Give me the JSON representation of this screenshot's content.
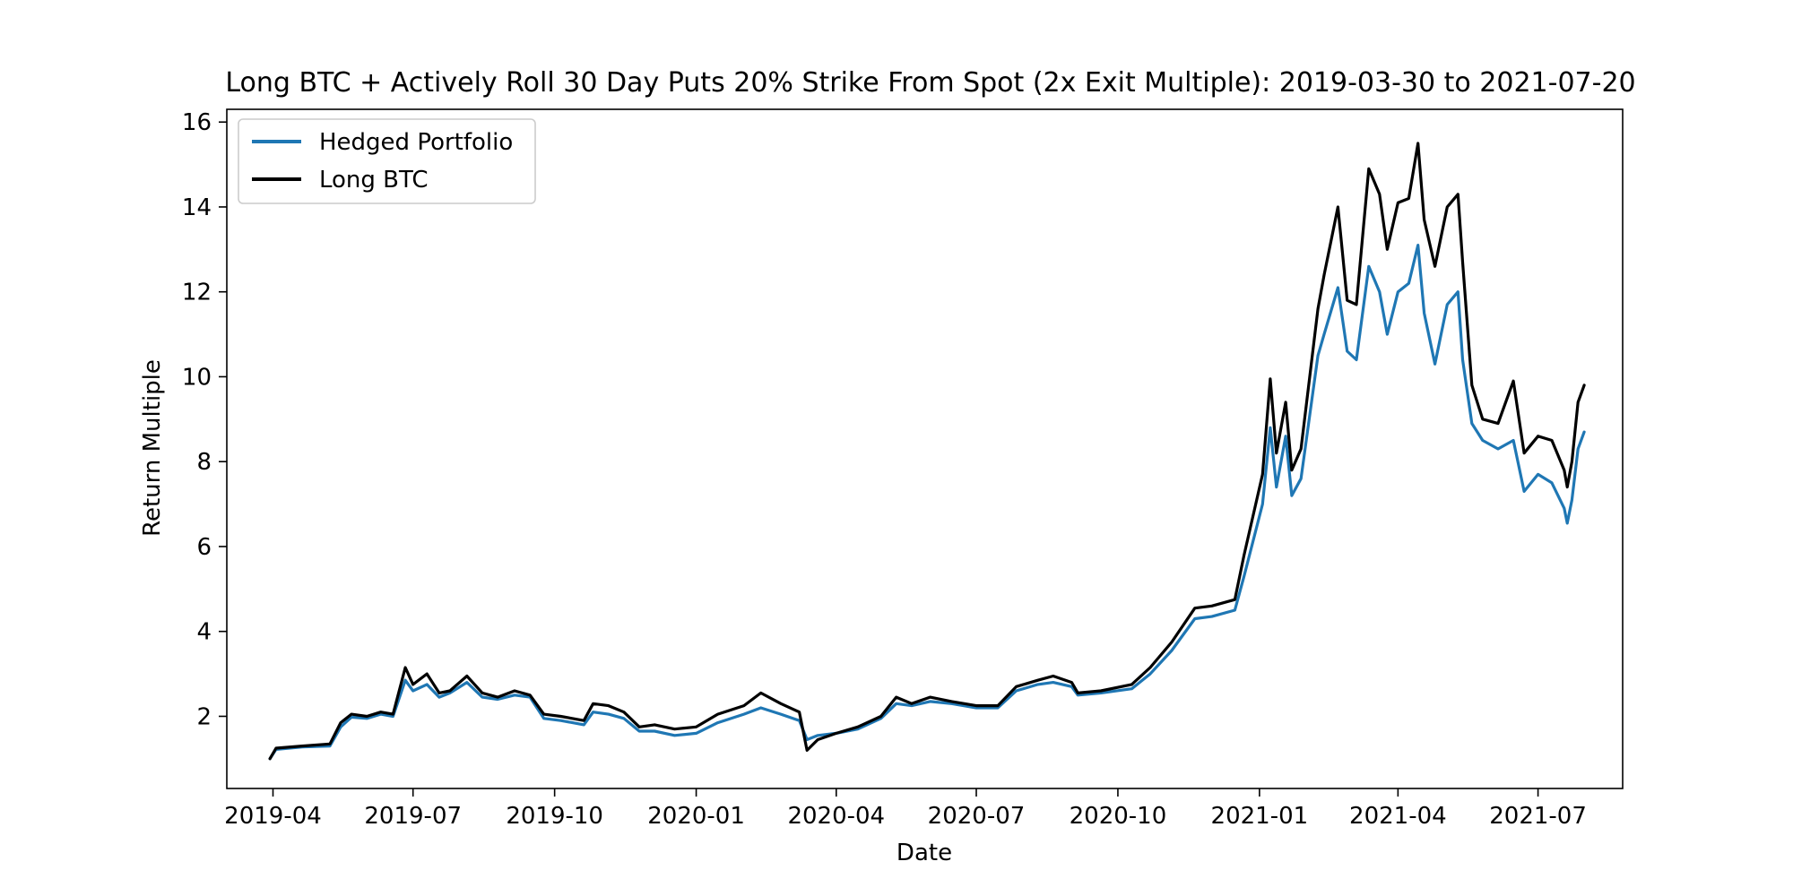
{
  "chart_data": {
    "type": "line",
    "title": "Long BTC + Actively Roll 30 Day Puts 20% Strike From Spot (2x Exit Multiple): 2019-03-30 to 2021-07-20",
    "xlabel": "Date",
    "ylabel": "Return Multiple",
    "ylim": [
      0.3,
      16.3
    ],
    "xlim": [
      "2019-03-02",
      "2021-08-25"
    ],
    "yticks": [
      2,
      4,
      6,
      8,
      10,
      12,
      14,
      16
    ],
    "yticklabels": [
      "2",
      "4",
      "6",
      "8",
      "10",
      "12",
      "14",
      "16"
    ],
    "xticks": [
      "2019-04-01",
      "2019-07-01",
      "2019-10-01",
      "2020-01-01",
      "2020-04-01",
      "2020-07-01",
      "2020-10-01",
      "2021-01-01",
      "2021-04-01",
      "2021-07-01"
    ],
    "xticklabels": [
      "2019-04",
      "2019-07",
      "2019-10",
      "2020-01",
      "2020-04",
      "2020-07",
      "2020-10",
      "2021-01",
      "2021-04",
      "2021-07"
    ],
    "grid": false,
    "legend_position": "upper-left",
    "colors": {
      "hedged": "#1f77b4",
      "long_btc": "#000000"
    },
    "series": [
      {
        "name": "Hedged Portfolio",
        "key": "hedged",
        "points": [
          [
            "2019-03-30",
            1.0
          ],
          [
            "2019-04-03",
            1.22
          ],
          [
            "2019-04-20",
            1.28
          ],
          [
            "2019-05-08",
            1.3
          ],
          [
            "2019-05-15",
            1.75
          ],
          [
            "2019-05-22",
            1.98
          ],
          [
            "2019-06-01",
            1.95
          ],
          [
            "2019-06-10",
            2.05
          ],
          [
            "2019-06-18",
            2.0
          ],
          [
            "2019-06-26",
            2.85
          ],
          [
            "2019-07-01",
            2.6
          ],
          [
            "2019-07-10",
            2.75
          ],
          [
            "2019-07-18",
            2.45
          ],
          [
            "2019-07-25",
            2.55
          ],
          [
            "2019-08-05",
            2.8
          ],
          [
            "2019-08-15",
            2.45
          ],
          [
            "2019-08-25",
            2.4
          ],
          [
            "2019-09-05",
            2.5
          ],
          [
            "2019-09-15",
            2.45
          ],
          [
            "2019-09-24",
            1.95
          ],
          [
            "2019-10-05",
            1.9
          ],
          [
            "2019-10-20",
            1.8
          ],
          [
            "2019-10-26",
            2.1
          ],
          [
            "2019-11-05",
            2.05
          ],
          [
            "2019-11-15",
            1.95
          ],
          [
            "2019-11-25",
            1.65
          ],
          [
            "2019-12-05",
            1.65
          ],
          [
            "2019-12-18",
            1.55
          ],
          [
            "2020-01-01",
            1.6
          ],
          [
            "2020-01-15",
            1.85
          ],
          [
            "2020-02-01",
            2.05
          ],
          [
            "2020-02-12",
            2.2
          ],
          [
            "2020-02-25",
            2.05
          ],
          [
            "2020-03-08",
            1.9
          ],
          [
            "2020-03-13",
            1.45
          ],
          [
            "2020-03-20",
            1.55
          ],
          [
            "2020-04-01",
            1.6
          ],
          [
            "2020-04-15",
            1.7
          ],
          [
            "2020-04-30",
            1.95
          ],
          [
            "2020-05-10",
            2.3
          ],
          [
            "2020-05-20",
            2.25
          ],
          [
            "2020-06-01",
            2.35
          ],
          [
            "2020-06-15",
            2.3
          ],
          [
            "2020-07-01",
            2.2
          ],
          [
            "2020-07-15",
            2.2
          ],
          [
            "2020-07-27",
            2.6
          ],
          [
            "2020-08-10",
            2.75
          ],
          [
            "2020-08-20",
            2.8
          ],
          [
            "2020-09-01",
            2.7
          ],
          [
            "2020-09-05",
            2.5
          ],
          [
            "2020-09-20",
            2.55
          ],
          [
            "2020-10-10",
            2.65
          ],
          [
            "2020-10-22",
            3.0
          ],
          [
            "2020-11-05",
            3.55
          ],
          [
            "2020-11-20",
            4.3
          ],
          [
            "2020-12-01",
            4.35
          ],
          [
            "2020-12-16",
            4.5
          ],
          [
            "2020-12-22",
            5.3
          ],
          [
            "2021-01-03",
            7.0
          ],
          [
            "2021-01-08",
            8.8
          ],
          [
            "2021-01-12",
            7.4
          ],
          [
            "2021-01-18",
            8.6
          ],
          [
            "2021-01-22",
            7.2
          ],
          [
            "2021-01-28",
            7.6
          ],
          [
            "2021-02-08",
            10.5
          ],
          [
            "2021-02-12",
            11.0
          ],
          [
            "2021-02-21",
            12.1
          ],
          [
            "2021-02-27",
            10.6
          ],
          [
            "2021-03-05",
            10.4
          ],
          [
            "2021-03-13",
            12.6
          ],
          [
            "2021-03-20",
            12.0
          ],
          [
            "2021-03-25",
            11.0
          ],
          [
            "2021-04-01",
            12.0
          ],
          [
            "2021-04-08",
            12.2
          ],
          [
            "2021-04-14",
            13.1
          ],
          [
            "2021-04-18",
            11.5
          ],
          [
            "2021-04-25",
            10.3
          ],
          [
            "2021-05-03",
            11.7
          ],
          [
            "2021-05-10",
            12.0
          ],
          [
            "2021-05-13",
            10.4
          ],
          [
            "2021-05-19",
            8.9
          ],
          [
            "2021-05-26",
            8.5
          ],
          [
            "2021-06-05",
            8.3
          ],
          [
            "2021-06-15",
            8.5
          ],
          [
            "2021-06-22",
            7.3
          ],
          [
            "2021-07-01",
            7.7
          ],
          [
            "2021-07-10",
            7.5
          ],
          [
            "2021-07-18",
            6.9
          ],
          [
            "2021-07-20",
            6.55
          ],
          [
            "2021-07-23",
            7.1
          ],
          [
            "2021-07-27",
            8.3
          ],
          [
            "2021-07-31",
            8.7
          ]
        ]
      },
      {
        "name": "Long BTC",
        "key": "long_btc",
        "points": [
          [
            "2019-03-30",
            1.0
          ],
          [
            "2019-04-03",
            1.25
          ],
          [
            "2019-04-20",
            1.3
          ],
          [
            "2019-05-08",
            1.35
          ],
          [
            "2019-05-15",
            1.85
          ],
          [
            "2019-05-22",
            2.05
          ],
          [
            "2019-06-01",
            2.0
          ],
          [
            "2019-06-10",
            2.1
          ],
          [
            "2019-06-18",
            2.05
          ],
          [
            "2019-06-26",
            3.15
          ],
          [
            "2019-07-01",
            2.75
          ],
          [
            "2019-07-10",
            3.0
          ],
          [
            "2019-07-18",
            2.55
          ],
          [
            "2019-07-25",
            2.6
          ],
          [
            "2019-08-05",
            2.95
          ],
          [
            "2019-08-15",
            2.55
          ],
          [
            "2019-08-25",
            2.45
          ],
          [
            "2019-09-05",
            2.6
          ],
          [
            "2019-09-15",
            2.5
          ],
          [
            "2019-09-24",
            2.05
          ],
          [
            "2019-10-05",
            2.0
          ],
          [
            "2019-10-20",
            1.9
          ],
          [
            "2019-10-26",
            2.3
          ],
          [
            "2019-11-05",
            2.25
          ],
          [
            "2019-11-15",
            2.1
          ],
          [
            "2019-11-25",
            1.75
          ],
          [
            "2019-12-05",
            1.8
          ],
          [
            "2019-12-18",
            1.7
          ],
          [
            "2020-01-01",
            1.75
          ],
          [
            "2020-01-15",
            2.05
          ],
          [
            "2020-02-01",
            2.25
          ],
          [
            "2020-02-12",
            2.55
          ],
          [
            "2020-02-25",
            2.3
          ],
          [
            "2020-03-08",
            2.1
          ],
          [
            "2020-03-13",
            1.2
          ],
          [
            "2020-03-20",
            1.45
          ],
          [
            "2020-04-01",
            1.6
          ],
          [
            "2020-04-15",
            1.75
          ],
          [
            "2020-04-30",
            2.0
          ],
          [
            "2020-05-10",
            2.45
          ],
          [
            "2020-05-20",
            2.3
          ],
          [
            "2020-06-01",
            2.45
          ],
          [
            "2020-06-15",
            2.35
          ],
          [
            "2020-07-01",
            2.25
          ],
          [
            "2020-07-15",
            2.25
          ],
          [
            "2020-07-27",
            2.7
          ],
          [
            "2020-08-10",
            2.85
          ],
          [
            "2020-08-20",
            2.95
          ],
          [
            "2020-09-01",
            2.8
          ],
          [
            "2020-09-05",
            2.55
          ],
          [
            "2020-09-20",
            2.6
          ],
          [
            "2020-10-10",
            2.75
          ],
          [
            "2020-10-22",
            3.15
          ],
          [
            "2020-11-05",
            3.75
          ],
          [
            "2020-11-20",
            4.55
          ],
          [
            "2020-12-01",
            4.6
          ],
          [
            "2020-12-16",
            4.75
          ],
          [
            "2020-12-22",
            5.8
          ],
          [
            "2021-01-03",
            7.7
          ],
          [
            "2021-01-08",
            9.95
          ],
          [
            "2021-01-12",
            8.2
          ],
          [
            "2021-01-18",
            9.4
          ],
          [
            "2021-01-22",
            7.8
          ],
          [
            "2021-01-28",
            8.3
          ],
          [
            "2021-02-08",
            11.6
          ],
          [
            "2021-02-12",
            12.4
          ],
          [
            "2021-02-21",
            14.0
          ],
          [
            "2021-02-27",
            11.8
          ],
          [
            "2021-03-05",
            11.7
          ],
          [
            "2021-03-13",
            14.9
          ],
          [
            "2021-03-20",
            14.3
          ],
          [
            "2021-03-25",
            13.0
          ],
          [
            "2021-04-01",
            14.1
          ],
          [
            "2021-04-08",
            14.2
          ],
          [
            "2021-04-14",
            15.5
          ],
          [
            "2021-04-18",
            13.7
          ],
          [
            "2021-04-25",
            12.6
          ],
          [
            "2021-05-03",
            14.0
          ],
          [
            "2021-05-10",
            14.3
          ],
          [
            "2021-05-13",
            12.7
          ],
          [
            "2021-05-19",
            9.8
          ],
          [
            "2021-05-26",
            9.0
          ],
          [
            "2021-06-05",
            8.9
          ],
          [
            "2021-06-15",
            9.9
          ],
          [
            "2021-06-22",
            8.2
          ],
          [
            "2021-07-01",
            8.6
          ],
          [
            "2021-07-10",
            8.5
          ],
          [
            "2021-07-18",
            7.8
          ],
          [
            "2021-07-20",
            7.4
          ],
          [
            "2021-07-23",
            8.0
          ],
          [
            "2021-07-27",
            9.4
          ],
          [
            "2021-07-31",
            9.8
          ]
        ]
      }
    ]
  }
}
